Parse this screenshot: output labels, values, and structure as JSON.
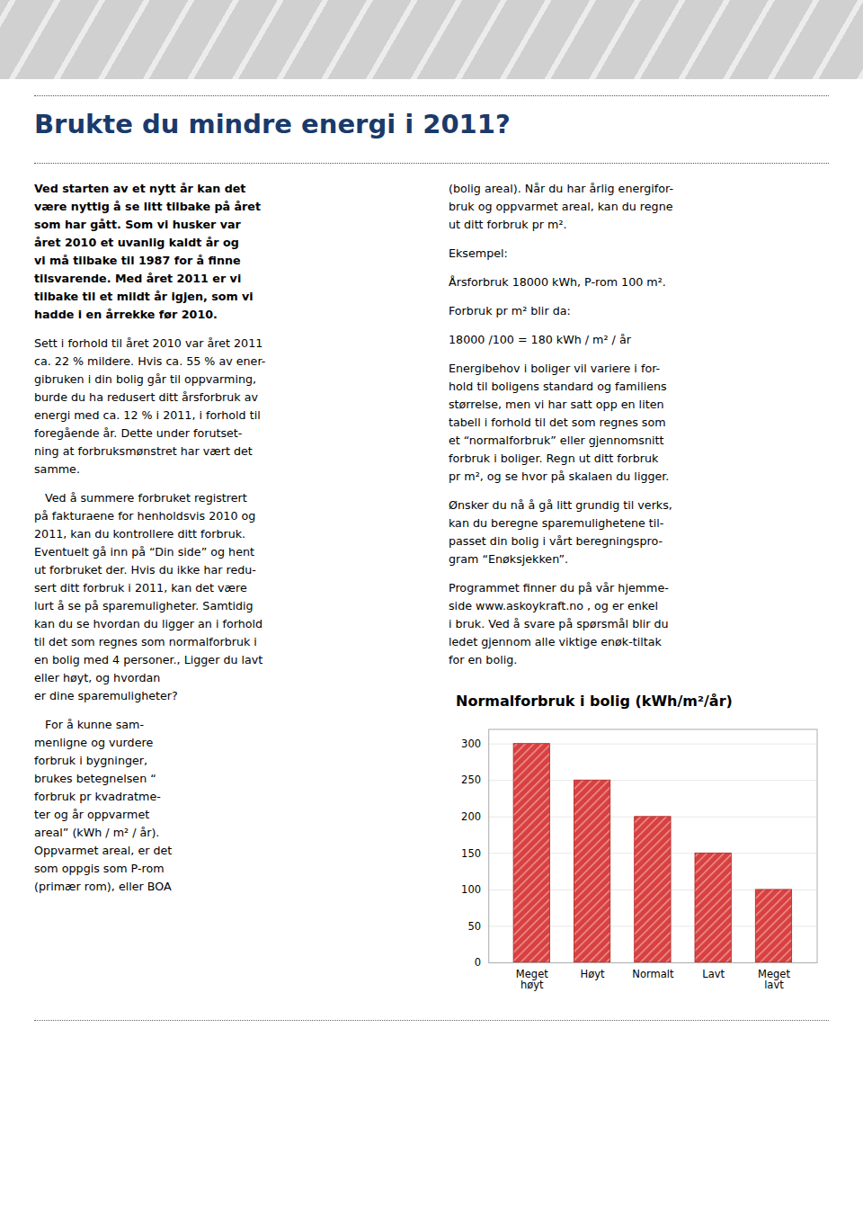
{
  "title": "Brukte du mindre energi i 2011?",
  "annotations": [
    [
      "Ved starten av et nytt år kan det\nvære nyttig å se litt tilbake på året\nsom har gått. Som vi husker var\nåret 2010 et uvanlig kaldt år og\nvi må tilbake til 1987 for å finne\ntilsvarende. Med året 2011 er vi\ntilbake til et mildt år igjen, som vi\nhadde i en årrekke før 2010.",
      "Sett i forhold til året 2010 var året 2011\nca. 22 % mildere. Hvis ca. 55 % av ener-\ngibruken i din bolig går til oppvarming,\nburde du ha redusert ditt årsforbruk av\nenergi med ca. 12 % i 2011, i forhold til\nforegående år. Dette under forutset-\nning at forbruksmønstret har vært det\nsamme.",
      "   Ved å summere forbruket registrert\npå fakturaene for henholdsvis 2010 og\n2011, kan du kontrollere ditt forbruk.\nEventuelt gå inn på “Din side” og hent\nut forbruket der. Hvis du ikke har redu-\nsert ditt forbruk i 2011, kan det være\nlurt å se på sparemuligheter. Samtidig\nkan du se hvordan du ligger an i forhold\ntil det som regnes som normalforbruk i\nen bolig med 4 personer., Ligger du lavt\neller høyt, og hvordan\ner dine sparemuligheter?",
      "   For å kunne sam-\nmenligne og vurdere\nforbruk i bygninger,\nbrukes betegnelsen “\nforbruk pr kvadratme-\nter og år oppvarmet\nareal” (kWh / m² / år).\nOppvarmet areal, er det\nsom oppgis som P-rom\n(primær rom), eller BOA"
    ],
    [
      "(bolig areal). Når du har årlig energifor-\nbruk og oppvarmet areal, kan du regne\nut ditt forbruk pr m².",
      "Eksempel:",
      "Årsforbruk 18000 kWh, P-rom 100 m².",
      "Forbruk pr m² blir da:",
      "18000 /100 = 180 kWh / m² / år",
      "Energibehov i boliger vil variere i for-\nhold til boligens standard og familiens\nstørrelse, men vi har satt opp en liten\ntabell i forhold til det som regnes som\net “normalforbruk” eller gjennomsnitt\nforbruk i boliger. Regn ut ditt forbruk\npr m², og se hvor på skalaen du ligger.",
      "Ønsker du nå å gå litt grundig til verks,\nkan du beregne sparemulighetene til-\npasset din bolig i vårt beregningspro-\ngram “Enøksjekken”.",
      "Programmet finner du på vår hjemme-\nside www.askoykraft.no , og er enkel\ni bruk. Ved å svare på spørsmål blir du\nledet gjennom alle viktige enøk-tiltak\nfor en bolig."
    ]
  ],
  "chart_data": {
    "type": "bar",
    "title": "Normalforbruk i bolig (kWh/m²/år)",
    "categories": [
      "Meget\nhøyt",
      "Høyt",
      "Normalt",
      "Lavt",
      "Meget\nlavt"
    ],
    "values": [
      300,
      250,
      200,
      150,
      100
    ],
    "color": "#d94040",
    "ylim": [
      0,
      320
    ],
    "yticks": [
      0,
      50,
      100,
      150,
      200,
      250,
      300
    ],
    "grid": true
  }
}
